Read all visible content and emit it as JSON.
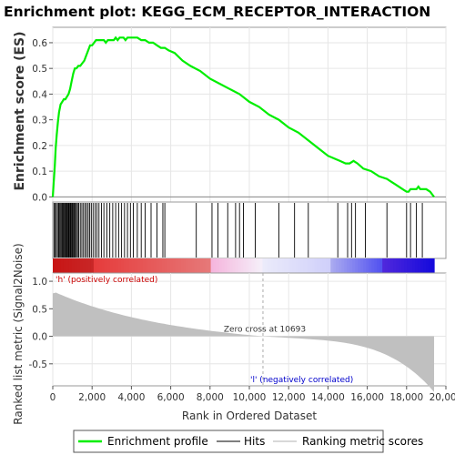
{
  "chart_data": {
    "type": "line",
    "title": "Enrichment plot: KEGG_ECM_RECEPTOR_INTERACTION",
    "ylabel": "Enrichment score (ES)",
    "xlabel": "Rank in Ordered Dataset",
    "ylabel2": "Ranked list metric (Signal2Noise)",
    "xlim": [
      0,
      20000
    ],
    "ylim": [
      -0.02,
      0.66
    ],
    "ylim2": [
      -0.9,
      1.15
    ],
    "xticks": [
      0,
      2000,
      4000,
      6000,
      8000,
      10000,
      12000,
      14000,
      16000,
      18000,
      20000
    ],
    "xtick_labels": [
      "0",
      "2,000",
      "4,000",
      "6,000",
      "8,000",
      "10,000",
      "12,000",
      "14,000",
      "16,000",
      "18,000",
      "20,000"
    ],
    "yticks": [
      0.0,
      0.1,
      0.2,
      0.3,
      0.4,
      0.5,
      0.6
    ],
    "ytick_labels": [
      "0.0",
      "0.1",
      "0.2",
      "0.3",
      "0.4",
      "0.5",
      "0.6"
    ],
    "yticks2": [
      -0.5,
      0.0,
      0.5,
      1.0
    ],
    "ytick2_labels": [
      "-0.5",
      "0.0",
      "0.5",
      "1.0"
    ],
    "series": [
      {
        "name": "Enrichment profile",
        "color": "#00ee00",
        "x": [
          0,
          40,
          100,
          150,
          200,
          260,
          320,
          400,
          480,
          560,
          640,
          720,
          800,
          880,
          960,
          1040,
          1120,
          1200,
          1300,
          1400,
          1500,
          1600,
          1700,
          1800,
          1900,
          2000,
          2100,
          2200,
          2300,
          2400,
          2500,
          2600,
          2700,
          2800,
          2900,
          3000,
          3100,
          3200,
          3300,
          3400,
          3500,
          3600,
          3700,
          3800,
          3900,
          4000,
          4100,
          4200,
          4300,
          4500,
          4700,
          4900,
          5100,
          5300,
          5500,
          5700,
          5900,
          6200,
          6600,
          7000,
          7500,
          8000,
          8500,
          9000,
          9500,
          10000,
          10500,
          11000,
          11500,
          12000,
          12500,
          13000,
          13500,
          14000,
          14300,
          14600,
          14900,
          15100,
          15300,
          15500,
          15800,
          16200,
          16600,
          17000,
          17200,
          17400,
          17600,
          17800,
          18000,
          18100,
          18200,
          18300,
          18400,
          18500,
          18600,
          18700,
          18800,
          18900,
          19000,
          19200,
          19400
        ],
        "y": [
          0.0,
          0.05,
          0.12,
          0.19,
          0.24,
          0.29,
          0.33,
          0.36,
          0.37,
          0.38,
          0.38,
          0.39,
          0.4,
          0.42,
          0.45,
          0.48,
          0.5,
          0.5,
          0.51,
          0.51,
          0.52,
          0.53,
          0.55,
          0.57,
          0.59,
          0.59,
          0.6,
          0.61,
          0.61,
          0.61,
          0.61,
          0.61,
          0.6,
          0.61,
          0.61,
          0.61,
          0.61,
          0.62,
          0.61,
          0.62,
          0.62,
          0.62,
          0.61,
          0.62,
          0.62,
          0.62,
          0.62,
          0.62,
          0.62,
          0.61,
          0.61,
          0.6,
          0.6,
          0.59,
          0.58,
          0.58,
          0.57,
          0.56,
          0.53,
          0.51,
          0.49,
          0.46,
          0.44,
          0.42,
          0.4,
          0.37,
          0.35,
          0.32,
          0.3,
          0.27,
          0.25,
          0.22,
          0.19,
          0.16,
          0.15,
          0.14,
          0.13,
          0.13,
          0.14,
          0.13,
          0.11,
          0.1,
          0.08,
          0.07,
          0.06,
          0.05,
          0.04,
          0.03,
          0.02,
          0.02,
          0.03,
          0.03,
          0.03,
          0.03,
          0.04,
          0.03,
          0.03,
          0.03,
          0.03,
          0.02,
          0.0
        ]
      }
    ],
    "hits": [
      60,
      120,
      180,
      240,
      300,
      330,
      380,
      430,
      480,
      520,
      560,
      610,
      650,
      700,
      740,
      790,
      830,
      880,
      920,
      970,
      1010,
      1060,
      1100,
      1150,
      1200,
      1260,
      1320,
      1400,
      1480,
      1560,
      1640,
      1720,
      1800,
      1880,
      1960,
      2050,
      2150,
      2250,
      2350,
      2480,
      2600,
      2750,
      2900,
      3050,
      3200,
      3350,
      3500,
      3650,
      3800,
      3950,
      4100,
      4300,
      4500,
      4700,
      5000,
      5300,
      5600,
      5700,
      7300,
      8100,
      8400,
      8900,
      9300,
      9500,
      9700,
      10300,
      11500,
      12300,
      13000,
      14500,
      15000,
      15200,
      15400,
      15900,
      17000,
      18000,
      18200,
      18500,
      18800
    ],
    "zero_cross_label": "Zero cross at 10693",
    "zero_cross": 10693,
    "pos_label": "'h' (positively correlated)",
    "neg_label": "'l' (negatively correlated)",
    "pos_color": "#cc0000",
    "neg_color": "#0000cc",
    "metric_color": "#c0c0c0",
    "legend": [
      {
        "label": "Enrichment profile",
        "color": "#00ee00"
      },
      {
        "label": "Hits",
        "color": "#555555"
      },
      {
        "label": "Ranking metric scores",
        "color": "#cccccc"
      }
    ],
    "legend_position": "bottom"
  }
}
